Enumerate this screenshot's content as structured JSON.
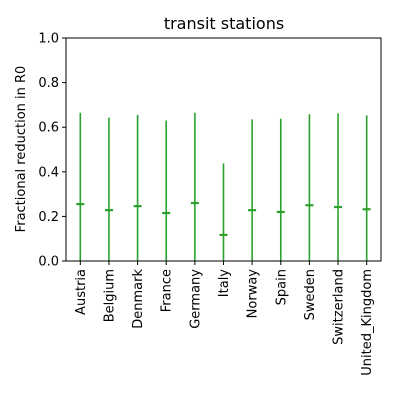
{
  "chart_data": {
    "type": "errorbar",
    "title": "transit stations",
    "xlabel": "",
    "ylabel": "Fractional reduction in R0",
    "ylim": [
      0.0,
      1.0
    ],
    "yticks": [
      "0.0",
      "0.2",
      "0.4",
      "0.6",
      "0.8",
      "1.0"
    ],
    "categories": [
      "Austria",
      "Belgium",
      "Denmark",
      "France",
      "Germany",
      "Italy",
      "Norway",
      "Spain",
      "Sweden",
      "Switzerland",
      "United_Kingdom"
    ],
    "series": [
      {
        "color": "#2ca02c",
        "median": [
          0.255,
          0.228,
          0.246,
          0.215,
          0.26,
          0.117,
          0.228,
          0.22,
          0.25,
          0.242,
          0.232
        ],
        "lower": [
          0.0,
          0.0,
          0.0,
          0.0,
          0.0,
          0.0,
          0.0,
          0.0,
          0.0,
          0.0,
          0.0
        ],
        "upper": [
          0.665,
          0.643,
          0.655,
          0.63,
          0.665,
          0.438,
          0.635,
          0.638,
          0.658,
          0.662,
          0.653
        ]
      }
    ],
    "grid": false
  }
}
